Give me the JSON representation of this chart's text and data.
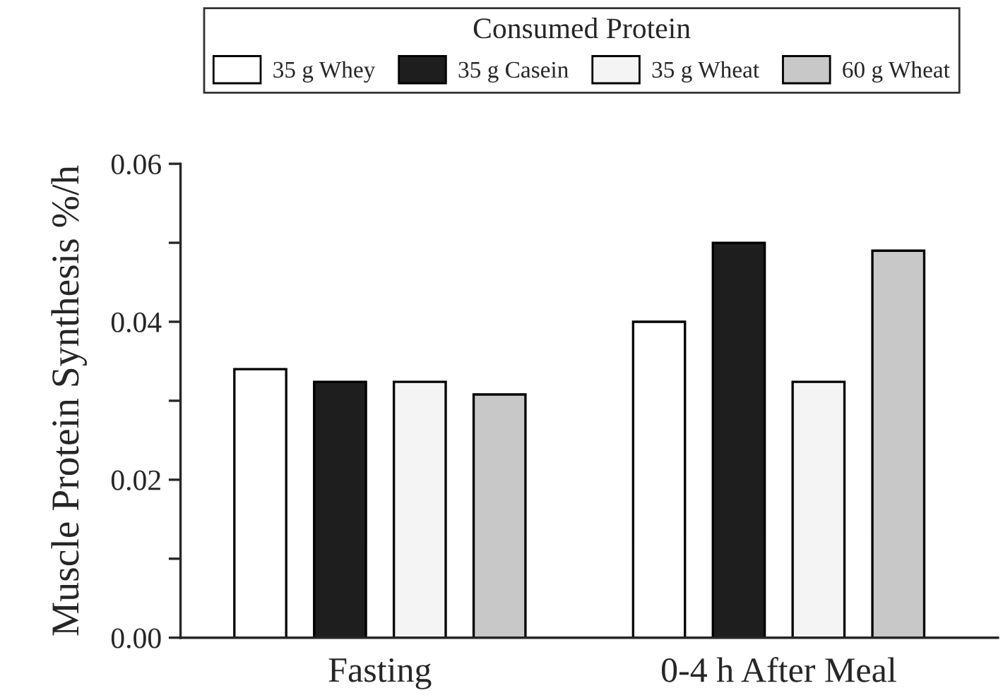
{
  "chart_data": {
    "type": "bar",
    "ylabel": "Muscle Protein Synthesis %/h",
    "legend_title": "Consumed Protein",
    "legend": "top",
    "categories": [
      "Fasting",
      "0-4 h After Meal"
    ],
    "series": [
      {
        "name": "35 g Whey",
        "color": "#ffffff",
        "values": [
          0.034,
          0.04
        ]
      },
      {
        "name": "35 g Casein",
        "color": "#1e1e1e",
        "values": [
          0.0324,
          0.05
        ]
      },
      {
        "name": "35 g Wheat",
        "color": "#f4f4f4",
        "values": [
          0.0324,
          0.0324
        ]
      },
      {
        "name": "60 g Wheat",
        "color": "#c8c8c8",
        "values": [
          0.0308,
          0.049
        ]
      }
    ],
    "ylim": [
      0,
      0.06
    ],
    "yticks": [
      {
        "value": 0,
        "label": "0.00"
      },
      {
        "value": 0.02,
        "label": "0.02"
      },
      {
        "value": 0.04,
        "label": "0.04"
      },
      {
        "value": 0.06,
        "label": "0.06"
      }
    ],
    "grid": false
  }
}
